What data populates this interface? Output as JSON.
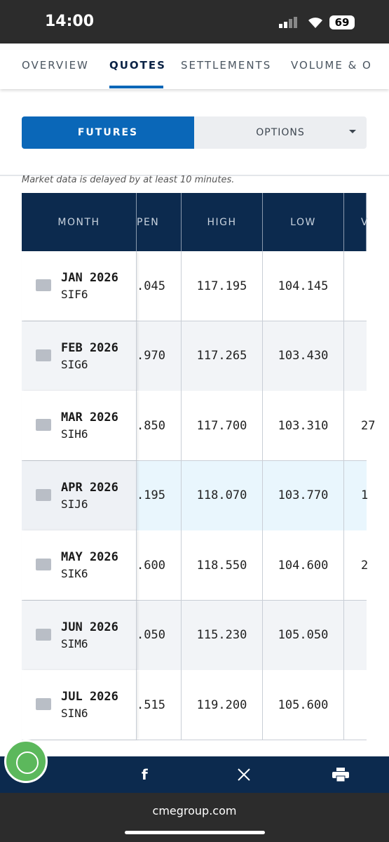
{
  "status_bar": {
    "time": "14:00",
    "battery": "69"
  },
  "tabs": [
    "OVERVIEW",
    "QUOTES",
    "SETTLEMENTS",
    "VOLUME & O"
  ],
  "toggle": {
    "futures": "FUTURES",
    "options": "OPTIONS"
  },
  "note": "Market data is delayed by at least 10 minutes.",
  "table": {
    "headers": [
      "MONTH",
      "PEN",
      "HIGH",
      "LOW",
      "V"
    ],
    "rows": [
      {
        "month": "JAN 2026",
        "code": "SIF6",
        "open": ".045",
        "high": "117.195",
        "low": "104.145"
      },
      {
        "month": "FEB 2026",
        "code": "SIG6",
        "open": ".970",
        "high": "117.265",
        "low": "103.430"
      },
      {
        "month": "MAR 2026",
        "code": "SIH6",
        "open": ".850",
        "high": "117.700",
        "low": "103.310",
        "volume": "27"
      },
      {
        "month": "APR 2026",
        "code": "SIJ6",
        "open": ".195",
        "high": "118.070",
        "low": "103.770",
        "volume": "1"
      },
      {
        "month": "MAY 2026",
        "code": "SIK6",
        "open": ".600",
        "high": "118.550",
        "low": "104.600",
        "volume": "2"
      },
      {
        "month": "JUN 2026",
        "code": "SIM6",
        "open": ".050",
        "high": "115.230",
        "low": "105.050"
      },
      {
        "month": "JUL 2026",
        "code": "SIN6",
        "open": ".515",
        "high": "119.200",
        "low": "105.600"
      }
    ]
  },
  "footer": {
    "url": "cmegroup.com"
  }
}
